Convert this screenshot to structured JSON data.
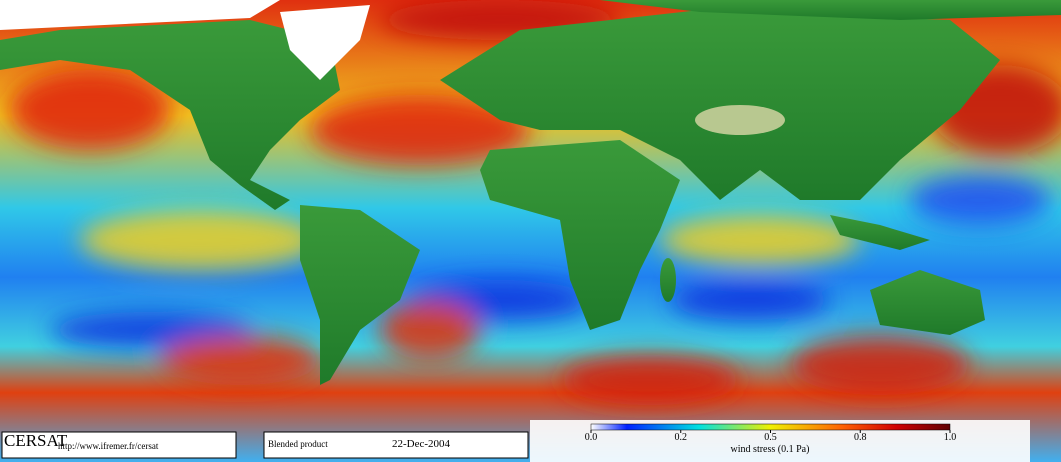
{
  "footer": {
    "logo": "CERSAT",
    "url": "http://www.ifremer.fr/cersat",
    "product": "Blended product",
    "date": "22-Dec-2004"
  },
  "colorbar": {
    "ticks": [
      {
        "value": 0,
        "label": "0.0"
      },
      0.2,
      0.5,
      0.8,
      {
        "value": 1,
        "label": "1.0"
      }
    ],
    "label": "wind stress (0.1 Pa)"
  }
}
